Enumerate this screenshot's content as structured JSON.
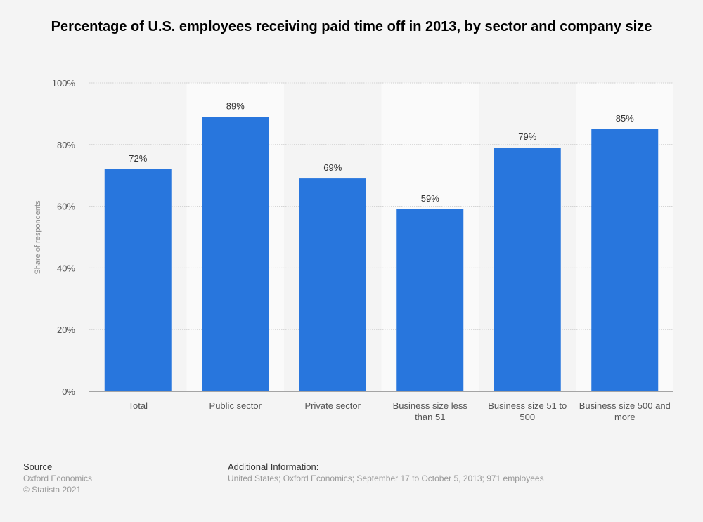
{
  "chart_data": {
    "type": "bar",
    "title": "Percentage of U.S. employees receiving paid time off in 2013, by sector and company size",
    "xlabel": "",
    "ylabel": "Share of respondents",
    "ylim": [
      0,
      100
    ],
    "yticks": [
      "0%",
      "20%",
      "40%",
      "60%",
      "80%",
      "100%"
    ],
    "categories": [
      "Total",
      "Public sector",
      "Private sector",
      "Business size less than 51",
      "Business size 51 to 500",
      "Business size 500 and more"
    ],
    "values": [
      72,
      89,
      69,
      59,
      79,
      85
    ],
    "data_labels": [
      "72%",
      "89%",
      "69%",
      "59%",
      "79%",
      "85%"
    ],
    "grid": true,
    "legend": "none",
    "bar_color": "#2876dd"
  },
  "footer": {
    "source_heading": "Source",
    "source_lines": [
      "Oxford Economics",
      "© Statista 2021"
    ],
    "info_heading": "Additional Information:",
    "info_text": "United States; Oxford Economics; September 17 to October 5, 2013; 971 employees"
  }
}
